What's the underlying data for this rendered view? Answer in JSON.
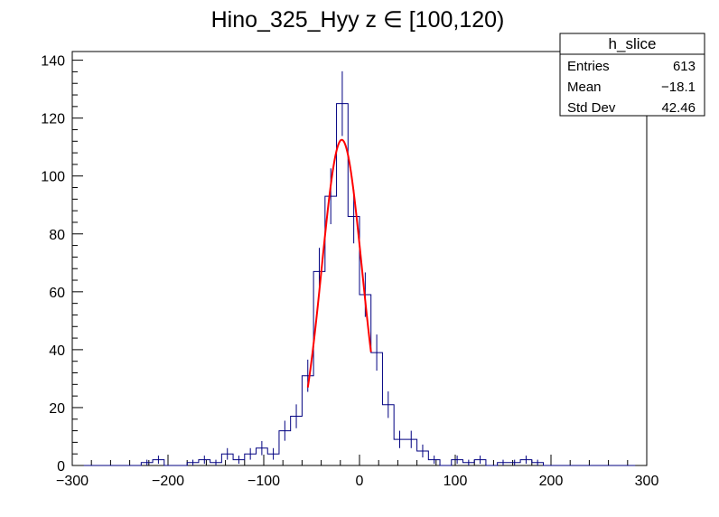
{
  "chart_data": {
    "type": "histogram",
    "title": "Hino_325_Hyy z  ∈ [100,120)",
    "xlim": [
      -300,
      300
    ],
    "ylim": [
      0,
      143
    ],
    "x_ticks": [
      -300,
      -200,
      -100,
      0,
      100,
      200,
      300
    ],
    "x_tick_labels": [
      "−300",
      "−200",
      "−100",
      "0",
      "100",
      "200",
      "300"
    ],
    "y_ticks": [
      0,
      20,
      40,
      60,
      80,
      100,
      120,
      140
    ],
    "y_tick_labels": [
      "0",
      "20",
      "40",
      "60",
      "80",
      "100",
      "120",
      "140"
    ],
    "bin_width": 12,
    "bins": [
      {
        "x": -282,
        "y": 0
      },
      {
        "x": -270,
        "y": 0
      },
      {
        "x": -258,
        "y": 0
      },
      {
        "x": -246,
        "y": 0
      },
      {
        "x": -234,
        "y": 0
      },
      {
        "x": -222,
        "y": 1
      },
      {
        "x": -210,
        "y": 2
      },
      {
        "x": -198,
        "y": 0
      },
      {
        "x": -186,
        "y": 0
      },
      {
        "x": -174,
        "y": 1
      },
      {
        "x": -162,
        "y": 2
      },
      {
        "x": -150,
        "y": 1
      },
      {
        "x": -138,
        "y": 4
      },
      {
        "x": -126,
        "y": 2
      },
      {
        "x": -114,
        "y": 4
      },
      {
        "x": -102,
        "y": 6
      },
      {
        "x": -90,
        "y": 4
      },
      {
        "x": -78,
        "y": 12
      },
      {
        "x": -66,
        "y": 17
      },
      {
        "x": -54,
        "y": 31
      },
      {
        "x": -42,
        "y": 67
      },
      {
        "x": -30,
        "y": 93
      },
      {
        "x": -18,
        "y": 125
      },
      {
        "x": -6,
        "y": 86
      },
      {
        "x": 6,
        "y": 59
      },
      {
        "x": 18,
        "y": 39
      },
      {
        "x": 30,
        "y": 21
      },
      {
        "x": 42,
        "y": 9
      },
      {
        "x": 54,
        "y": 9
      },
      {
        "x": 66,
        "y": 5
      },
      {
        "x": 78,
        "y": 2
      },
      {
        "x": 90,
        "y": 0
      },
      {
        "x": 102,
        "y": 2
      },
      {
        "x": 114,
        "y": 1
      },
      {
        "x": 126,
        "y": 2
      },
      {
        "x": 138,
        "y": 0
      },
      {
        "x": 150,
        "y": 1
      },
      {
        "x": 162,
        "y": 1
      },
      {
        "x": 174,
        "y": 2
      },
      {
        "x": 186,
        "y": 1
      },
      {
        "x": 198,
        "y": 0
      },
      {
        "x": 210,
        "y": 0
      },
      {
        "x": 222,
        "y": 0
      },
      {
        "x": 234,
        "y": 0
      },
      {
        "x": 246,
        "y": 0
      },
      {
        "x": 258,
        "y": 0
      },
      {
        "x": 270,
        "y": 0
      },
      {
        "x": 282,
        "y": 0
      }
    ],
    "fit": {
      "type": "gaussian",
      "amplitude": 112.5,
      "mean": -18.5,
      "sigma": 21,
      "range": [
        -54,
        12
      ]
    },
    "colors": {
      "histogram": "#000080",
      "fit": "#ff0000"
    }
  },
  "stats_box": {
    "name": "h_slice",
    "rows": [
      {
        "label": "Entries",
        "value": "613"
      },
      {
        "label": "Mean",
        "value": "−18.1"
      },
      {
        "label": "Std Dev",
        "value": "42.46"
      }
    ]
  }
}
